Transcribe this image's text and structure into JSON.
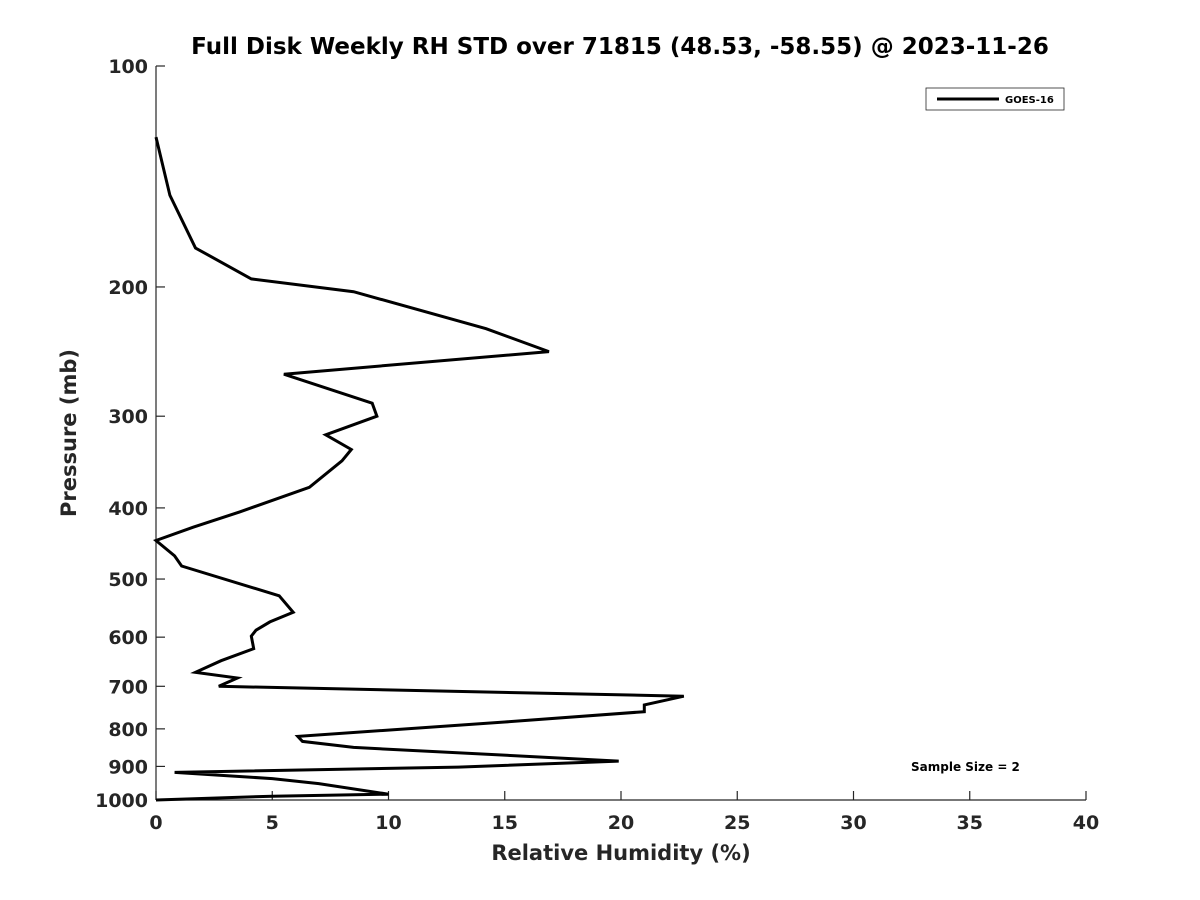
{
  "chart_data": {
    "type": "line",
    "title": "Full Disk Weekly RH STD over 71815 (48.53, -58.55) @ 2023-11-26",
    "xlabel": "Relative Humidity (%)",
    "ylabel": "Pressure (mb)",
    "xlim": [
      0,
      40
    ],
    "ylim": [
      100,
      1000
    ],
    "yscale": "log",
    "y_reversed": true,
    "grid": false,
    "x_ticks": [
      0,
      5,
      10,
      15,
      20,
      25,
      30,
      35,
      40
    ],
    "x_tick_labels": [
      "0",
      "5",
      "10",
      "15",
      "20",
      "25",
      "30",
      "35",
      "40"
    ],
    "y_ticks": [
      100,
      200,
      300,
      400,
      500,
      600,
      700,
      800,
      900,
      1000
    ],
    "y_tick_labels": [
      "100",
      "200",
      "300",
      "400",
      "500",
      "600",
      "700",
      "800",
      "900",
      "1000"
    ],
    "legend": {
      "placement": "top-right",
      "entries": [
        "GOES-16"
      ]
    },
    "annotation": "Sample Size = 2",
    "series": [
      {
        "name": "GOES-16",
        "color": "#000000",
        "points": [
          [
            0.0,
            125
          ],
          [
            0.6,
            150
          ],
          [
            1.7,
            177
          ],
          [
            4.1,
            195
          ],
          [
            8.5,
            203
          ],
          [
            14.2,
            228
          ],
          [
            16.9,
            245
          ],
          [
            5.5,
            263
          ],
          [
            9.3,
            288
          ],
          [
            9.5,
            300
          ],
          [
            7.3,
            318
          ],
          [
            8.4,
            333
          ],
          [
            8.0,
            345
          ],
          [
            6.6,
            375
          ],
          [
            3.6,
            405
          ],
          [
            1.6,
            425
          ],
          [
            0.0,
            443
          ],
          [
            0.8,
            465
          ],
          [
            1.1,
            480
          ],
          [
            5.3,
            527
          ],
          [
            5.9,
            555
          ],
          [
            4.9,
            572
          ],
          [
            4.3,
            587
          ],
          [
            4.1,
            598
          ],
          [
            4.2,
            622
          ],
          [
            2.8,
            646
          ],
          [
            1.7,
            670
          ],
          [
            3.5,
            682
          ],
          [
            2.7,
            700
          ],
          [
            22.7,
            722
          ],
          [
            21.0,
            742
          ],
          [
            21.0,
            758
          ],
          [
            15.0,
            783
          ],
          [
            6.1,
            819
          ],
          [
            6.3,
            832
          ],
          [
            8.5,
            848
          ],
          [
            19.9,
            885
          ],
          [
            13.0,
            902
          ],
          [
            0.8,
            917
          ],
          [
            5.0,
            935
          ],
          [
            7.0,
            950
          ],
          [
            10.0,
            982
          ],
          [
            5.0,
            988
          ],
          [
            0.0,
            1000
          ]
        ]
      }
    ]
  }
}
